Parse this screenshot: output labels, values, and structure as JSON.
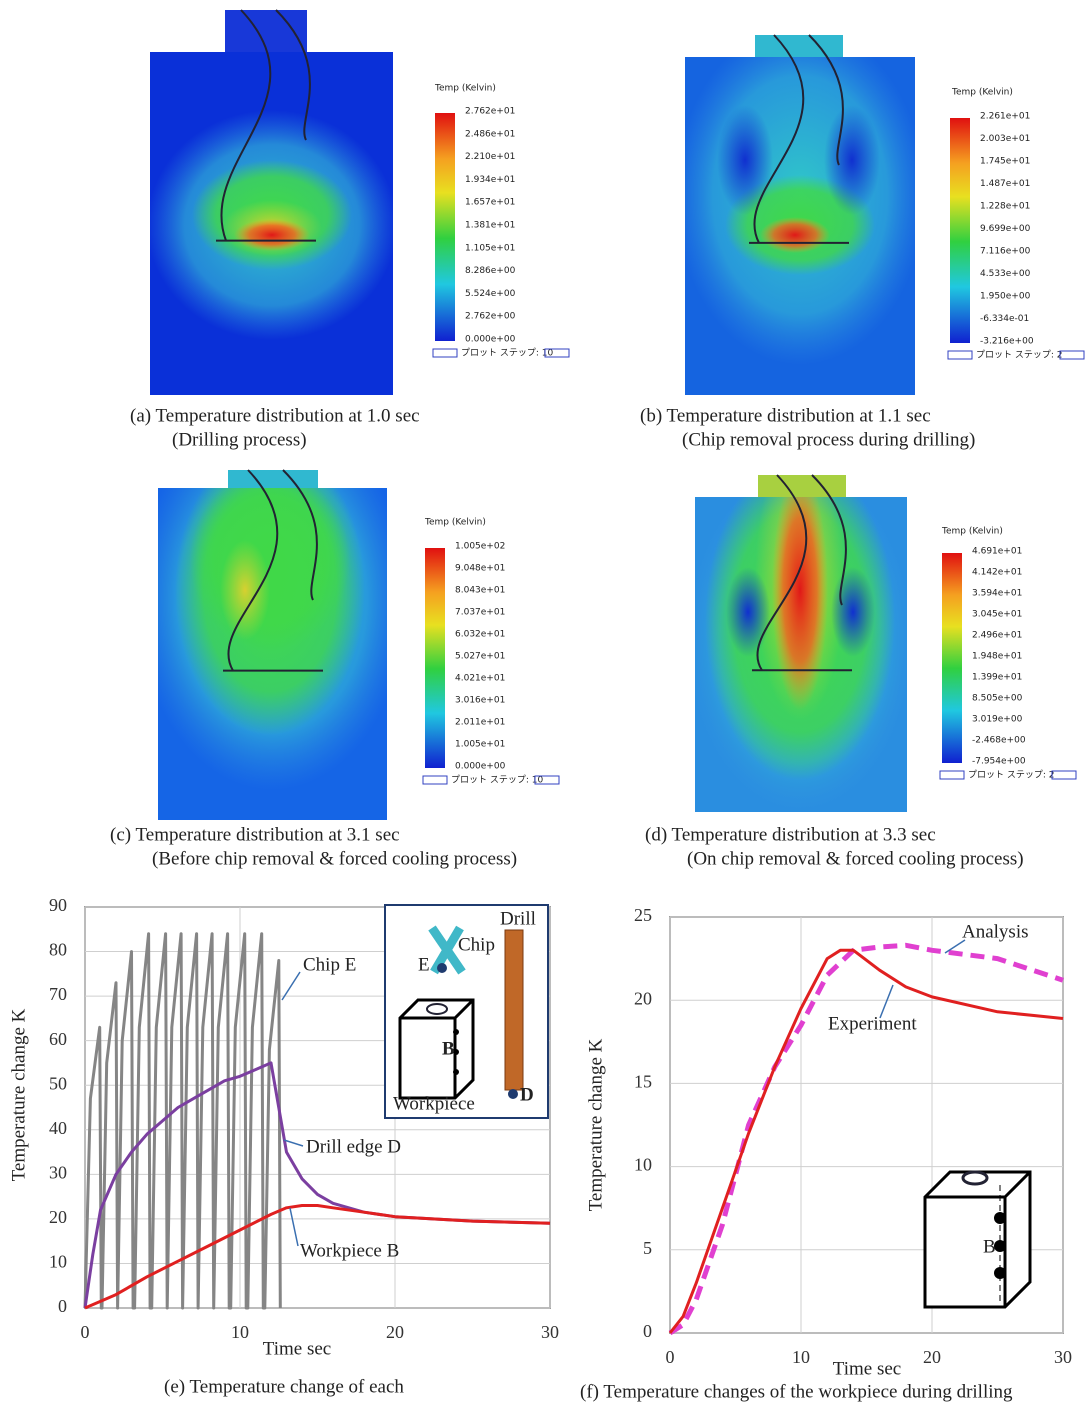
{
  "panels": [
    {
      "caption": [
        "(a)   Temperature distribution at 1.0 sec",
        "(Drilling process)"
      ],
      "colorbar_title": "Temp (Kelvin)",
      "colorbar_labels": [
        "2.762e+01",
        "2.486e+01",
        "2.210e+01",
        "1.934e+01",
        "1.657e+01",
        "1.381e+01",
        "1.105e+01",
        "8.286e+00",
        "5.524e+00",
        "2.762e+00",
        "0.000e+00"
      ],
      "step": "プロット ステップ: 10"
    },
    {
      "caption": [
        "(b)   Temperature distribution at 1.1 sec",
        "(Chip removal process during drilling)"
      ],
      "colorbar_title": "Temp (Kelvin)",
      "colorbar_labels": [
        "2.261e+01",
        "2.003e+01",
        "1.745e+01",
        "1.487e+01",
        "1.228e+01",
        "9.699e+00",
        "7.116e+00",
        "4.533e+00",
        "1.950e+00",
        "-6.334e-01",
        "-3.216e+00"
      ],
      "step": "プロット ステップ: 2"
    },
    {
      "caption": [
        "(c)   Temperature distribution at 3.1 sec",
        "(Before chip removal & forced cooling process)"
      ],
      "colorbar_title": "Temp (Kelvin)",
      "colorbar_labels": [
        "1.005e+02",
        "9.048e+01",
        "8.043e+01",
        "7.037e+01",
        "6.032e+01",
        "5.027e+01",
        "4.021e+01",
        "3.016e+01",
        "2.011e+01",
        "1.005e+01",
        "0.000e+00"
      ],
      "step": "プロット ステップ: 10"
    },
    {
      "caption": [
        "(d)   Temperature distribution at 3.3 sec",
        "(On chip removal & forced cooling process)"
      ],
      "colorbar_title": "Temp (Kelvin)",
      "colorbar_labels": [
        "4.691e+01",
        "4.142e+01",
        "3.594e+01",
        "3.045e+01",
        "2.496e+01",
        "1.948e+01",
        "1.399e+01",
        "8.505e+00",
        "3.019e+00",
        "-2.468e+00",
        "-7.954e+00"
      ],
      "step": "プロット ステップ: 2"
    }
  ],
  "chart_data": [
    {
      "type": "line",
      "caption": "(e) Temperature change of each",
      "xlabel": "Time sec",
      "ylabel": "Temperature change K",
      "xlim": [
        0,
        30
      ],
      "ylim": [
        0,
        90
      ],
      "xticks": [
        0,
        10,
        20,
        30
      ],
      "yticks": [
        0,
        10,
        20,
        30,
        40,
        50,
        60,
        70,
        80,
        90
      ],
      "grid": true,
      "series": [
        {
          "name": "Chip E",
          "color": "#858585",
          "x": [
            0,
            0.35,
            0.95,
            1.05,
            1.1,
            1.4,
            2.0,
            2.1,
            2.4,
            3.0,
            3.1,
            3.2,
            3.5,
            4.1,
            4.2,
            4.3,
            4.6,
            5.2,
            5.3,
            5.6,
            6.2,
            6.3,
            6.6,
            7.2,
            7.3,
            7.6,
            8.2,
            8.3,
            8.6,
            9.2,
            9.3,
            9.4,
            9.7,
            10.3,
            10.4,
            10.5,
            10.8,
            11.4,
            11.5,
            11.6,
            11.9,
            12.5,
            12.6
          ],
          "values": [
            0,
            47,
            63,
            0,
            0,
            55,
            73,
            0,
            60,
            80,
            0,
            0,
            63,
            84,
            0,
            0,
            63,
            84,
            0,
            63,
            84,
            0,
            63,
            84,
            0,
            63,
            84,
            0,
            63,
            84,
            0,
            0,
            63,
            84,
            0,
            0,
            63,
            84,
            0,
            0,
            58,
            78,
            0
          ]
        },
        {
          "name": "Drill edge D",
          "color": "#7b3fa0",
          "x": [
            0,
            0.5,
            1,
            2,
            3,
            4,
            5,
            6,
            7,
            8,
            9,
            10,
            11,
            12,
            13,
            14,
            15,
            16,
            18,
            20,
            25,
            30
          ],
          "values": [
            0,
            12,
            22,
            30,
            35,
            39,
            42,
            45,
            47,
            49,
            51,
            52,
            53.5,
            55,
            35,
            29,
            25.5,
            23.5,
            21.5,
            20.5,
            19.5,
            19
          ]
        },
        {
          "name": "Workpiece B",
          "color": "#e02020",
          "x": [
            0,
            2,
            4,
            6,
            8,
            10,
            12,
            13,
            14,
            15,
            16,
            18,
            20,
            25,
            30
          ],
          "values": [
            0,
            3,
            7,
            10.5,
            14,
            17.5,
            21,
            22.5,
            23,
            23,
            22.5,
            21.5,
            20.5,
            19.5,
            19
          ]
        }
      ],
      "inset_labels": [
        "Drill",
        "Chip",
        "E",
        "B",
        "D",
        "Workpiece"
      ]
    },
    {
      "type": "line",
      "caption": "(f)   Temperature changes of the workpiece during drilling",
      "xlabel": "Time sec",
      "ylabel": "Temperature change K",
      "xlim": [
        0,
        30
      ],
      "ylim": [
        0,
        25
      ],
      "xticks": [
        0,
        10,
        20,
        30
      ],
      "yticks": [
        0,
        5,
        10,
        15,
        20,
        25
      ],
      "grid": true,
      "series": [
        {
          "name": "Analysis",
          "color": "#e040d0",
          "dashed": true,
          "x": [
            0,
            1,
            2,
            4,
            6,
            8,
            10,
            12,
            14,
            16,
            18,
            20,
            25,
            30
          ],
          "values": [
            0,
            0.5,
            2,
            6.5,
            12.5,
            16,
            18.5,
            21.5,
            23,
            23.2,
            23.3,
            23,
            22.5,
            21.2
          ]
        },
        {
          "name": "Experiment",
          "color": "#e02020",
          "x": [
            0,
            1,
            2,
            4,
            6,
            8,
            10,
            12,
            13,
            14,
            16,
            18,
            20,
            25,
            30
          ],
          "values": [
            0,
            1,
            3,
            7.5,
            12,
            16,
            19.5,
            22.5,
            23,
            23,
            21.8,
            20.8,
            20.2,
            19.3,
            18.9
          ]
        }
      ],
      "inset_labels": [
        "B"
      ]
    }
  ]
}
